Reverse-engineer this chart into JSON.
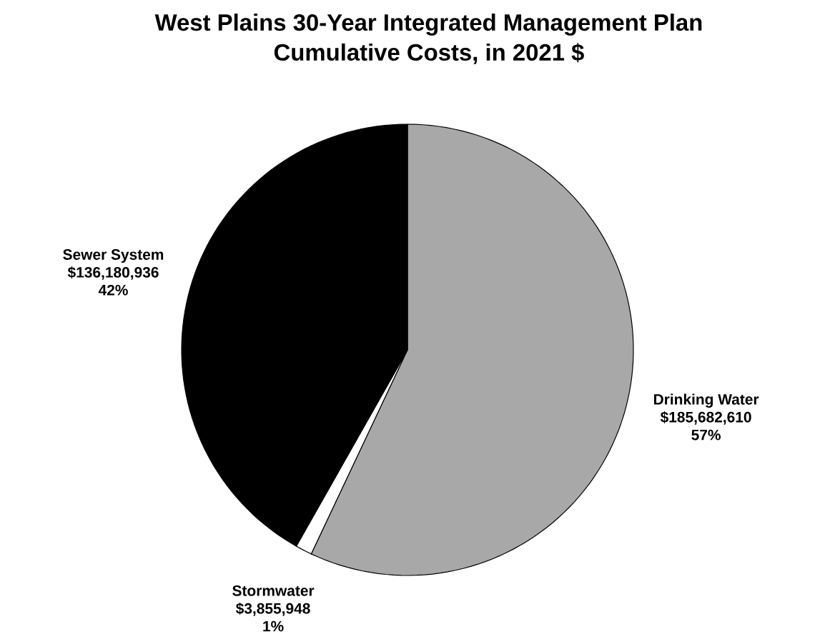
{
  "chart_data": {
    "type": "pie",
    "title": "West Plains 30-Year Integrated Management Plan",
    "subtitle": "Cumulative Costs, in 2021 $",
    "categories": [
      "Drinking Water",
      "Stormwater",
      "Sewer System"
    ],
    "values": [
      185682610,
      3855948,
      136180936
    ],
    "colors": [
      "#a8a8a8",
      "#ffffff",
      "#000000"
    ],
    "value_labels": [
      "$185,682,610",
      "$3,855,948",
      "$136,180,936"
    ],
    "annotations": [
      {
        "text": "57%",
        "x": "Drinking Water"
      },
      {
        "text": "1%",
        "x": "Stormwater"
      },
      {
        "text": "42%",
        "x": "Sewer System"
      }
    ]
  }
}
